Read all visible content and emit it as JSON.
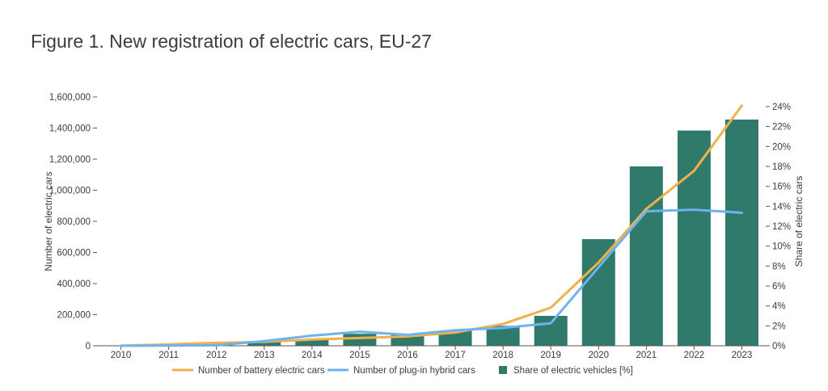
{
  "title": "Figure 1. New registration of electric cars, EU-27",
  "colors": {
    "battery": "#f2b04b",
    "phev": "#6db3f2",
    "share": "#2f7a6b",
    "axis": "#555555"
  },
  "chart_data": {
    "type": "bar",
    "categories": [
      "2010",
      "2011",
      "2012",
      "2013",
      "2014",
      "2015",
      "2016",
      "2017",
      "2018",
      "2019",
      "2020",
      "2021",
      "2022",
      "2023"
    ],
    "ylabel": "Number of electric cars",
    "y2label": "Share of electric cars",
    "ylim": [
      0,
      1600000
    ],
    "y2lim": [
      0,
      0.25
    ],
    "yticks": [
      "0",
      "200,000",
      "400,000",
      "600,000",
      "800,000",
      "1,000,000",
      "1,200,000",
      "1,400,000",
      "1,600,000"
    ],
    "y2ticks": [
      "0%",
      "2%",
      "4%",
      "6%",
      "8%",
      "10%",
      "12%",
      "14%",
      "16%",
      "18%",
      "20%",
      "22%",
      "24%"
    ],
    "series": [
      {
        "name": "Number of battery electric cars",
        "type": "line",
        "values": [
          700,
          9000,
          19000,
          25000,
          40000,
          50000,
          60000,
          85000,
          140000,
          245000,
          535000,
          880000,
          1125000,
          1545000
        ]
      },
      {
        "name": "Number of plug-in hybrid cars",
        "type": "line",
        "values": [
          0,
          1000,
          3000,
          30000,
          65000,
          90000,
          70000,
          100000,
          115000,
          145000,
          505000,
          865000,
          875000,
          855000
        ]
      },
      {
        "name": "Share of electric vehicles [%]",
        "type": "bar",
        "values": [
          0.0,
          0.001,
          0.002,
          0.004,
          0.006,
          0.012,
          0.011,
          0.015,
          0.02,
          0.03,
          0.107,
          0.18,
          0.216,
          0.227
        ]
      }
    ],
    "legend": {
      "position": "bottom",
      "items": [
        {
          "label": "Number of battery electric cars",
          "kind": "line",
          "color": "#f2b04b"
        },
        {
          "label": "Number of plug-in hybrid cars",
          "kind": "line",
          "color": "#6db3f2"
        },
        {
          "label": "Share of electric vehicles [%]",
          "kind": "square",
          "color": "#2f7a6b"
        }
      ]
    }
  }
}
